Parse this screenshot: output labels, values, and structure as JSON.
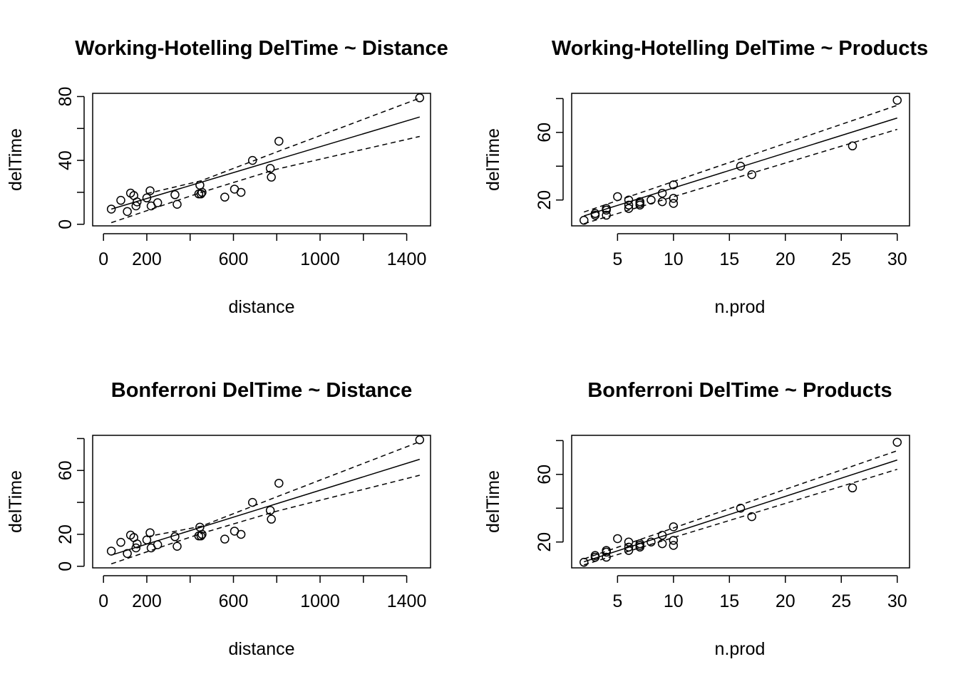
{
  "chart_data": [
    {
      "type": "scatter",
      "title": "Working-Hotelling DelTime ~ Distance",
      "xlabel": "distance",
      "ylabel": "delTime",
      "xlim": [
        -50,
        1510
      ],
      "ylim": [
        -1,
        82
      ],
      "xticks": [
        0,
        200,
        600,
        1000,
        1400
      ],
      "xticks_minor": [
        400,
        800,
        1200
      ],
      "yticks": [
        0,
        40,
        80
      ],
      "yticks_minor": [
        20,
        60
      ],
      "points": {
        "x": [
          36,
          80,
          110,
          125,
          140,
          150,
          155,
          200,
          215,
          220,
          250,
          330,
          340,
          440,
          445,
          450,
          455,
          560,
          605,
          635,
          688,
          770,
          775,
          810,
          1460
        ],
        "y": [
          9.5,
          15,
          8,
          19.5,
          18,
          11.5,
          14,
          16.5,
          21,
          11.5,
          13.5,
          18.5,
          12.5,
          19,
          24.5,
          19,
          20,
          17,
          22,
          20,
          40,
          35,
          29.5,
          52,
          79.2
        ]
      },
      "fit": {
        "x": [
          36,
          1460
        ],
        "y": [
          9.5,
          67.2
        ]
      },
      "band_upper": {
        "x": [
          200,
          450,
          800,
          1460
        ],
        "y": [
          19.2,
          27.2,
          45.3,
          79.0
        ]
      },
      "band_lower": {
        "x": [
          36,
          450,
          800,
          1460
        ],
        "y": [
          1.0,
          19.9,
          34.5,
          55.0
        ]
      }
    },
    {
      "type": "scatter",
      "title": "Working-Hotelling DelTime ~ Products",
      "xlabel": "n.prod",
      "ylabel": "delTime",
      "xlim": [
        0.9,
        31.1
      ],
      "ylim": [
        4.7,
        83.1
      ],
      "xticks": [
        5,
        10,
        15,
        20,
        25,
        30
      ],
      "yticks": [
        20,
        60
      ],
      "yticks_minor": [
        40,
        80
      ],
      "points": {
        "x": [
          2,
          3,
          3,
          4,
          4,
          4,
          5,
          6,
          6,
          6,
          7,
          7,
          7,
          8,
          9,
          9,
          10,
          10,
          10,
          16,
          17,
          26,
          30
        ],
        "y": [
          8,
          11,
          12,
          11,
          14,
          15,
          22,
          20,
          15,
          17,
          18,
          19,
          17,
          20,
          19,
          24,
          29,
          21,
          18,
          40,
          35,
          52,
          79
        ]
      },
      "fit": {
        "x": [
          2,
          30
        ],
        "y": [
          10.6,
          68.5
        ]
      },
      "band_upper": {
        "x": [
          2,
          30
        ],
        "y": [
          12.9,
          76.0
        ]
      },
      "band_lower": {
        "x": [
          2,
          30
        ],
        "y": [
          6.0,
          61.8
        ]
      }
    },
    {
      "type": "scatter",
      "title": "Bonferroni DelTime ~ Distance",
      "xlabel": "distance",
      "ylabel": "delTime",
      "xlim": [
        -50,
        1510
      ],
      "ylim": [
        -1,
        82
      ],
      "xticks": [
        0,
        200,
        600,
        1000,
        1400
      ],
      "xticks_minor": [
        400,
        800,
        1200
      ],
      "yticks": [
        0,
        20,
        60
      ],
      "yticks_minor": [
        40,
        80
      ],
      "points": {
        "x": [
          36,
          80,
          110,
          125,
          140,
          150,
          155,
          200,
          215,
          220,
          250,
          330,
          340,
          440,
          445,
          450,
          455,
          560,
          605,
          635,
          688,
          770,
          775,
          810,
          1460
        ],
        "y": [
          9.5,
          15,
          8,
          19.5,
          18,
          11.5,
          14,
          16.5,
          21,
          11.5,
          13.5,
          18.5,
          12.5,
          19,
          24.5,
          19,
          20,
          17,
          22,
          20,
          40,
          35,
          29.5,
          52,
          79.2
        ]
      },
      "fit": {
        "x": [
          36,
          1460
        ],
        "y": [
          7.0,
          67.0
        ]
      },
      "band_upper": {
        "x": [
          200,
          450,
          800,
          1460
        ],
        "y": [
          18.5,
          25.0,
          43.5,
          78.0
        ]
      },
      "band_lower": {
        "x": [
          36,
          450,
          800,
          1460
        ],
        "y": [
          1.5,
          20.5,
          34.5,
          57.0
        ]
      }
    },
    {
      "type": "scatter",
      "title": "Bonferroni DelTime ~ Products",
      "xlabel": "n.prod",
      "ylabel": "delTime",
      "xlim": [
        0.9,
        31.1
      ],
      "ylim": [
        4.7,
        83.1
      ],
      "xticks": [
        5,
        10,
        15,
        20,
        25,
        30
      ],
      "yticks": [
        20,
        60
      ],
      "yticks_minor": [
        40,
        80
      ],
      "points": {
        "x": [
          2,
          3,
          3,
          4,
          4,
          4,
          5,
          6,
          6,
          6,
          7,
          7,
          7,
          8,
          9,
          9,
          10,
          10,
          10,
          16,
          17,
          26,
          30
        ],
        "y": [
          8,
          11,
          12,
          11,
          14,
          15,
          22,
          20,
          15,
          17,
          18,
          19,
          17,
          20,
          19,
          24,
          29,
          21,
          18,
          40,
          35,
          52,
          79
        ]
      },
      "fit": {
        "x": [
          2,
          30
        ],
        "y": [
          8.3,
          68.5
        ]
      },
      "band_upper": {
        "x": [
          2,
          30
        ],
        "y": [
          10.0,
          74.0
        ]
      },
      "band_lower": {
        "x": [
          2,
          30
        ],
        "y": [
          6.5,
          63.0
        ]
      }
    }
  ]
}
